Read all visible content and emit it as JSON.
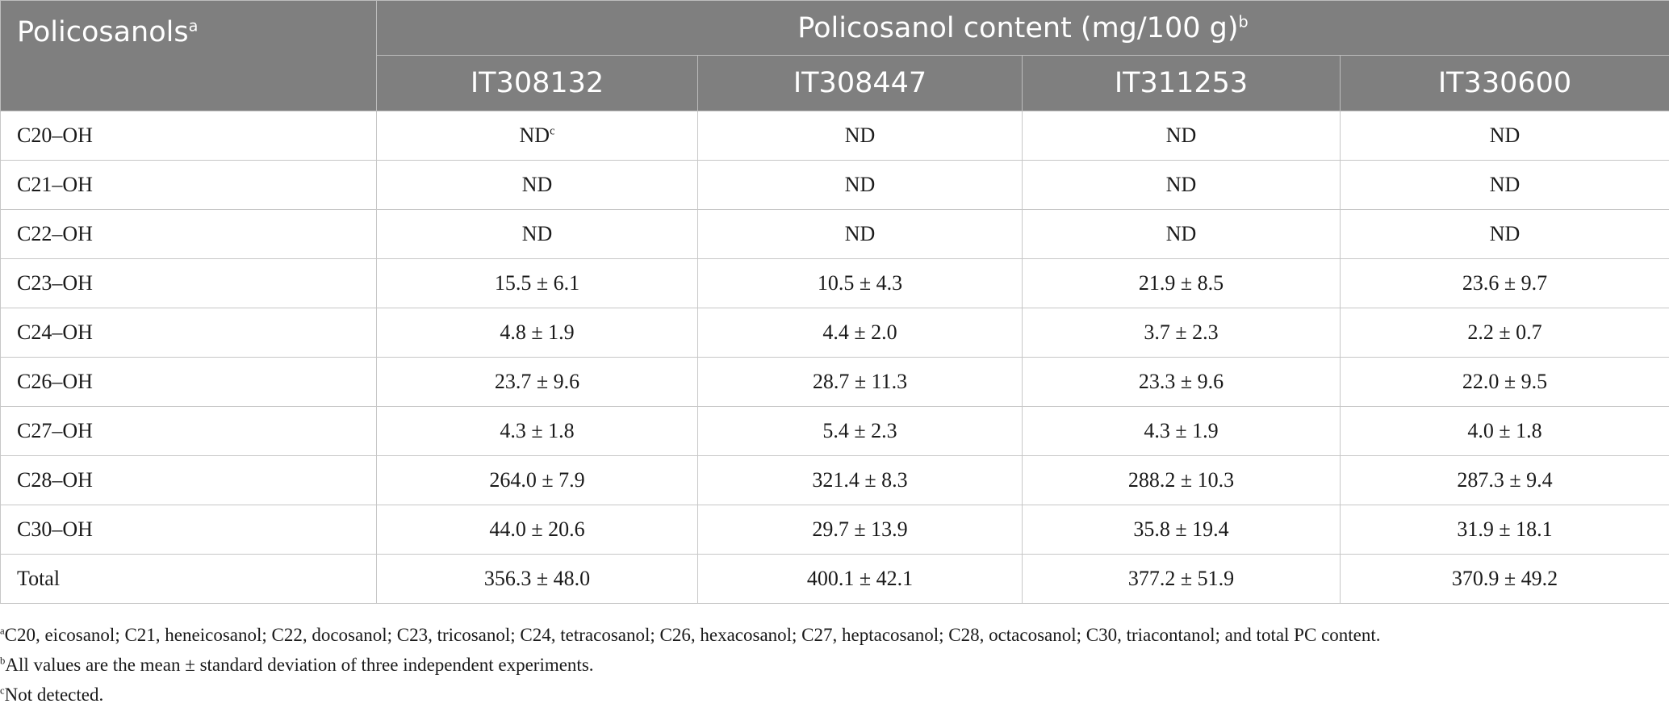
{
  "table": {
    "first_header": "Policosanols",
    "first_header_sup": "a",
    "group_header": "Policosanol content (mg/100 g)",
    "group_header_sup": "b",
    "columns": [
      "IT308132",
      "IT308447",
      "IT311253",
      "IT330600"
    ],
    "rows": [
      {
        "label": "C20–OH",
        "values": [
          "ND",
          "ND",
          "ND",
          "ND"
        ],
        "first_value_sup": "c"
      },
      {
        "label": "C21–OH",
        "values": [
          "ND",
          "ND",
          "ND",
          "ND"
        ]
      },
      {
        "label": "C22–OH",
        "values": [
          "ND",
          "ND",
          "ND",
          "ND"
        ]
      },
      {
        "label": "C23–OH",
        "values": [
          "15.5 ± 6.1",
          "10.5 ± 4.3",
          "21.9 ± 8.5",
          "23.6 ± 9.7"
        ]
      },
      {
        "label": "C24–OH",
        "values": [
          "4.8 ± 1.9",
          "4.4 ± 2.0",
          "3.7 ± 2.3",
          "2.2 ± 0.7"
        ]
      },
      {
        "label": "C26–OH",
        "values": [
          "23.7 ± 9.6",
          "28.7 ± 11.3",
          "23.3 ± 9.6",
          "22.0 ± 9.5"
        ]
      },
      {
        "label": "C27–OH",
        "values": [
          "4.3 ± 1.8",
          "5.4 ± 2.3",
          "4.3 ± 1.9",
          "4.0 ± 1.8"
        ]
      },
      {
        "label": "C28–OH",
        "values": [
          "264.0 ± 7.9",
          "321.4 ± 8.3",
          "288.2 ± 10.3",
          "287.3 ± 9.4"
        ]
      },
      {
        "label": "C30–OH",
        "values": [
          "44.0 ± 20.6",
          "29.7 ± 13.9",
          "35.8 ± 19.4",
          "31.9 ± 18.1"
        ]
      },
      {
        "label": "Total",
        "values": [
          "356.3 ± 48.0",
          "400.1 ± 42.1",
          "377.2 ± 51.9",
          "370.9 ± 49.2"
        ]
      }
    ]
  },
  "footnotes": [
    {
      "mark": "a",
      "text": "C20, eicosanol; C21, heneicosanol; C22, docosanol; C23, tricosanol; C24, tetracosanol; C26, hexacosanol; C27, heptacosanol; C28, octacosanol; C30, triacontanol; and total PC content."
    },
    {
      "mark": "b",
      "text": "All values are the mean ± standard deviation of three independent experiments."
    },
    {
      "mark": "c",
      "text": "Not detected."
    }
  ]
}
